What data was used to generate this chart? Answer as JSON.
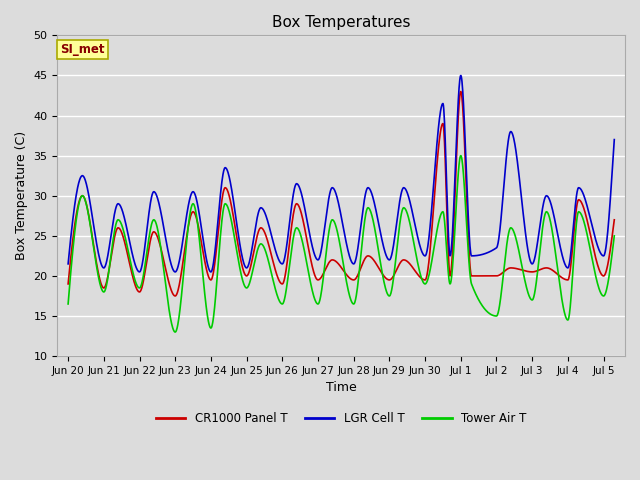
{
  "title": "Box Temperatures",
  "xlabel": "Time",
  "ylabel": "Box Temperature (C)",
  "ylim": [
    10,
    50
  ],
  "background_color": "#dcdcdc",
  "grid_color": "white",
  "annotation_text": "SI_met",
  "annotation_box_color": "#ffff99",
  "annotation_text_color": "#880000",
  "tick_labels": [
    "Jun 20",
    "Jun 21",
    "Jun 22",
    "Jun 23",
    "Jun 24",
    "Jun 25",
    "Jun 26",
    "Jun 27",
    "Jun 28",
    "Jun 29",
    "Jun 30",
    "Jul 1",
    "Jul 2",
    "Jul 3",
    "Jul 4",
    "Jul 5"
  ],
  "tick_positions": [
    0,
    1,
    2,
    3,
    4,
    5,
    6,
    7,
    8,
    9,
    10,
    11,
    12,
    13,
    14,
    15
  ],
  "series": {
    "CR1000_Panel_T": {
      "color": "#cc0000",
      "label": "CR1000 Panel T",
      "linewidth": 1.2
    },
    "LGR_Cell_T": {
      "color": "#0000cc",
      "label": "LGR Cell T",
      "linewidth": 1.2
    },
    "Tower_Air_T": {
      "color": "#00cc00",
      "label": "Tower Air T",
      "linewidth": 1.2
    }
  },
  "figsize": [
    6.4,
    4.8
  ],
  "dpi": 100
}
